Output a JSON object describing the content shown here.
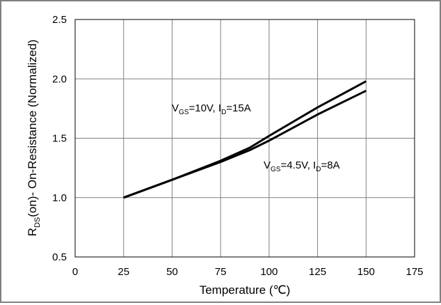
{
  "chart_data": {
    "type": "line",
    "xlabel": "Temperature (℃)",
    "ylabel": {
      "pre": "R",
      "sub": "DS",
      "post": "(on)- On-Resistance (Normalized)"
    },
    "xlim": [
      0,
      175
    ],
    "ylim": [
      0.5,
      2.5
    ],
    "x_ticks": [
      0,
      25,
      50,
      75,
      100,
      125,
      150,
      175
    ],
    "y_ticks": [
      0.5,
      1.0,
      1.5,
      2.0,
      2.5
    ],
    "y_tick_labels": [
      "0.5",
      "1.0",
      "1.5",
      "2.0",
      "2.5"
    ],
    "grid": true,
    "series": [
      {
        "key": "vgs10",
        "label": {
          "v": "V",
          "vsub": "GS",
          "vval": "=10V, ",
          "i": "I",
          "isub": "D",
          "ival": "=15A"
        },
        "x": [
          25,
          50,
          75,
          90,
          100,
          125,
          150
        ],
        "y": [
          1.0,
          1.15,
          1.31,
          1.42,
          1.52,
          1.76,
          1.98
        ]
      },
      {
        "key": "vgs45",
        "label": {
          "v": "V",
          "vsub": "GS",
          "vval": "=4.5V, ",
          "i": "I",
          "isub": "D",
          "ival": "=8A"
        },
        "x": [
          25,
          50,
          75,
          90,
          100,
          125,
          150
        ],
        "y": [
          1.0,
          1.15,
          1.3,
          1.4,
          1.48,
          1.7,
          1.9
        ]
      }
    ]
  }
}
